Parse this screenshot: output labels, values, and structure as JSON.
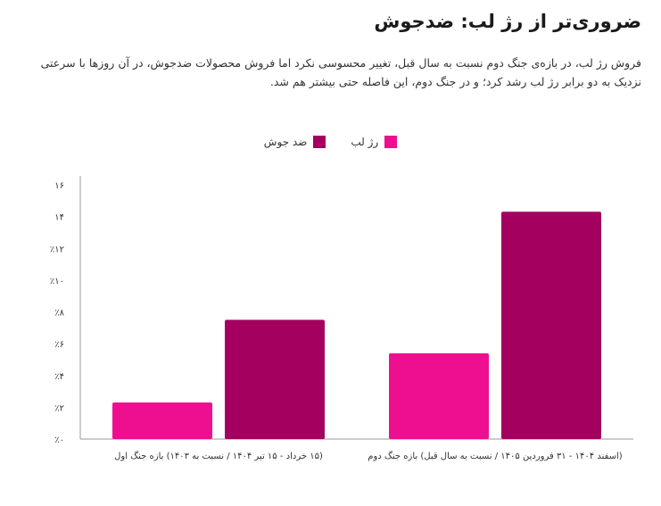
{
  "title": "ضروری‌تر از رژ لب: ضدجوش",
  "description": "فروش رژ لب، در بازه‌ی جنگ دوم نسبت به سال قبل، تغییر محسوسی نکرد اما فروش محصولات ضدجوش، در آن روزها با سرعتی نزدیک به دو برابر رژ لب رشد کرد؛ و در جنگ دوم، این فاصله حتی بیشتر هم شد.",
  "colors": {
    "lipstick": "#ee0f91",
    "acne": "#a3005f"
  },
  "chart_data": {
    "type": "bar",
    "categories": [
      "(۱۵ خرداد - ۱۵ تیر ۱۴۰۴ / نسبت به ۱۴۰۳) بازه جنگ اول",
      "(اسفند ۱۴۰۴ - ۳۱ فروردین ۱۴۰۵ / نسبت به سال قبل) بازه جنگ دوم"
    ],
    "series": [
      {
        "name": "رژ لب",
        "values": [
          2.3,
          5.4
        ]
      },
      {
        "name": "ضد جوش",
        "values": [
          7.5,
          14.3
        ]
      }
    ],
    "ylim": [
      0,
      16
    ],
    "yticks": [
      0,
      2,
      4,
      6,
      8,
      10,
      12,
      14,
      16
    ],
    "ytick_labels": [
      "٪۰",
      "٪۲",
      "٪۴",
      "٪۶",
      "٪۸",
      "٪۱۰",
      "٪۱۲",
      "۱۴",
      "۱۶"
    ],
    "legend_position": "top-center",
    "grid": false
  }
}
